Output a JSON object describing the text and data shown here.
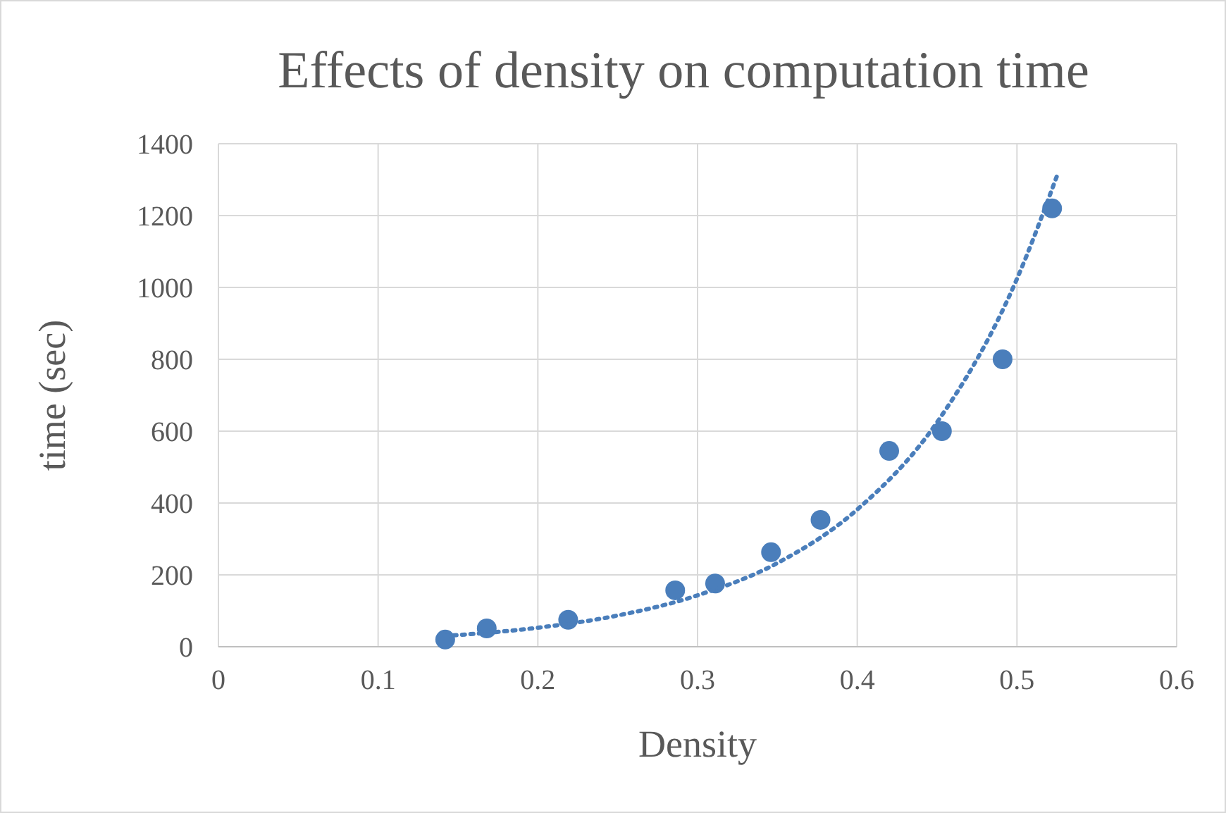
{
  "chart_data": {
    "type": "scatter",
    "title": "Effects of density on computation time",
    "xlabel": "Density",
    "ylabel": "time (sec)",
    "xlim": [
      0,
      0.6
    ],
    "xticks": [
      0,
      0.1,
      0.2,
      0.3,
      0.4,
      0.5,
      0.6
    ],
    "ylim": [
      0,
      1400
    ],
    "yticks": [
      0,
      200,
      400,
      600,
      800,
      1000,
      1200,
      1400
    ],
    "grid": true,
    "series": [
      {
        "type": "scatter",
        "color": "#4a7ebb",
        "marker": "circle",
        "x": [
          0.142,
          0.168,
          0.219,
          0.286,
          0.311,
          0.346,
          0.377,
          0.42,
          0.453,
          0.491,
          0.522
        ],
        "values": [
          20,
          51,
          75,
          157,
          176,
          263,
          353,
          545,
          600,
          800,
          1220
        ]
      },
      {
        "type": "line",
        "color": "#4a7ebb",
        "marker": "none",
        "line_style": "dotted",
        "x": [
          0.142,
          0.2,
          0.25,
          0.3,
          0.35,
          0.4,
          0.45,
          0.5,
          0.525
        ],
        "values": [
          30,
          53,
          87,
          143,
          233,
          382,
          625,
          1024,
          1310
        ]
      }
    ]
  }
}
